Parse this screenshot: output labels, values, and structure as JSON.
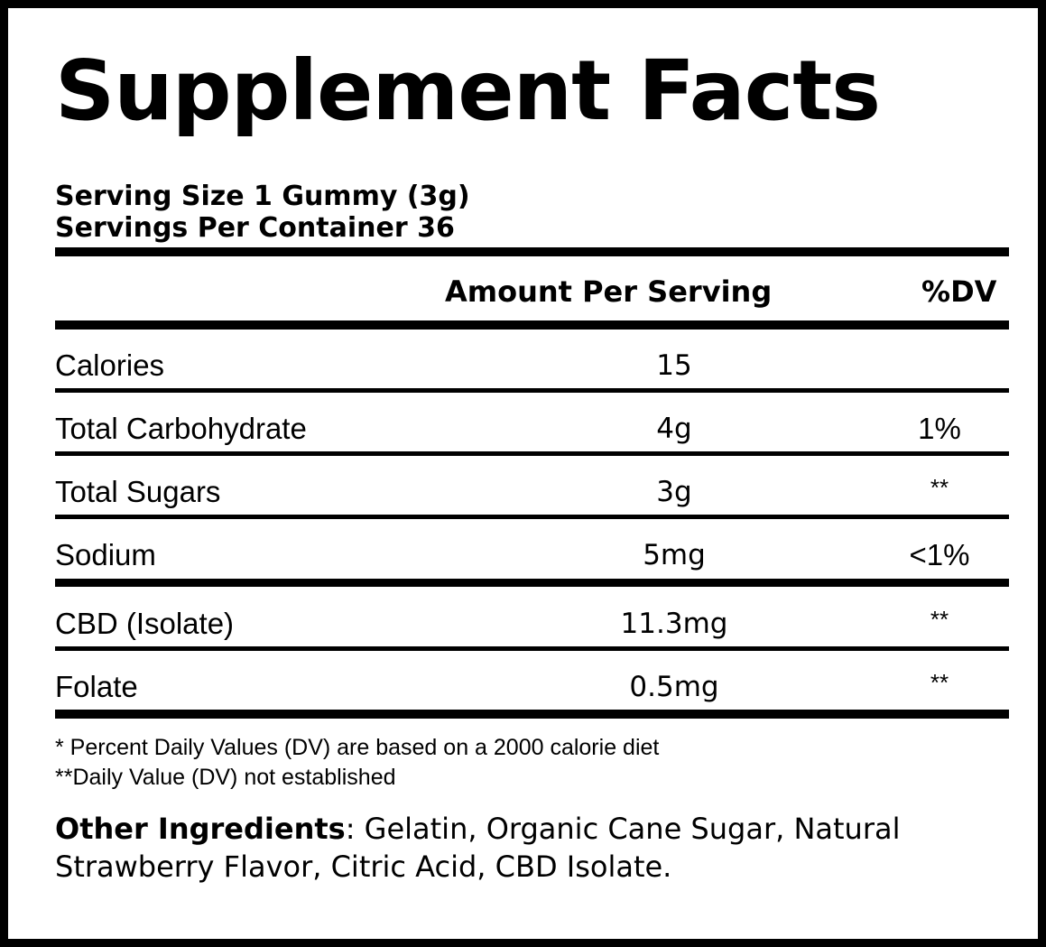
{
  "title": "Supplement Facts",
  "serving_size": "Serving Size 1 Gummy (3g)",
  "servings_per_container": "Servings Per Container 36",
  "columns": {
    "amount": "Amount Per Serving",
    "dv": "%DV"
  },
  "rows": [
    {
      "name": "Calories",
      "amount": "15",
      "dv": ""
    },
    {
      "name": "Total Carbohydrate",
      "amount": "4g",
      "dv": "1%"
    },
    {
      "name": "Total Sugars",
      "amount": "3g",
      "dv": "**"
    },
    {
      "name": "Sodium",
      "amount": "5mg",
      "dv": "<1%"
    },
    {
      "name": "CBD (Isolate)",
      "amount": "11.3mg",
      "dv": "**"
    },
    {
      "name": "Folate",
      "amount": "0.5mg",
      "dv": "**"
    }
  ],
  "footnotes": [
    "* Percent Daily Values (DV) are based on a 2000 calorie diet",
    "**Daily Value (DV) not established"
  ],
  "other_ingredients": {
    "label": "Other Ingredients",
    "text": ": Gelatin, Organic Cane Sugar, Natural Strawberry Flavor, Citric Acid, CBD Isolate."
  }
}
